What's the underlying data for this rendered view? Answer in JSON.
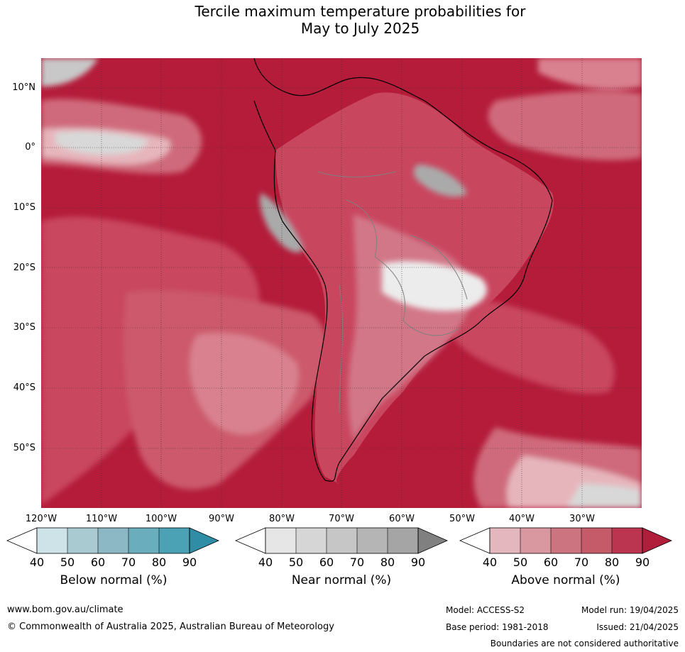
{
  "title": {
    "line1": "Tercile maximum temperature probabilities for",
    "line2": "May to July 2025"
  },
  "map": {
    "latitude_labels": [
      "10°N",
      "0°",
      "10°S",
      "20°S",
      "30°S",
      "40°S",
      "50°S"
    ],
    "longitude_labels": [
      "120°W",
      "110°W",
      "100°W",
      "90°W",
      "80°W",
      "70°W",
      "60°W",
      "50°W",
      "40°W",
      "30°W"
    ],
    "colors": {
      "above_90": "#b41c3a",
      "ocean_base": "#bf3750",
      "land_border": "#808080",
      "coastline": "#000000"
    }
  },
  "colorbars": [
    {
      "title": "Below normal (%)",
      "ticks": [
        "40",
        "50",
        "60",
        "70",
        "80",
        "90"
      ],
      "colors": [
        "#ffffff",
        "#cde3e8",
        "#a9cad1",
        "#8bb8c4",
        "#6aaebd",
        "#4aa2b4",
        "#2f8ea6"
      ]
    },
    {
      "title": "Near normal (%)",
      "ticks": [
        "40",
        "50",
        "60",
        "70",
        "80",
        "90"
      ],
      "colors": [
        "#ffffff",
        "#e6e6e6",
        "#d6d6d6",
        "#c6c6c6",
        "#b5b5b5",
        "#a5a5a5",
        "#808080"
      ]
    },
    {
      "title": "Above normal (%)",
      "ticks": [
        "40",
        "50",
        "60",
        "70",
        "80",
        "90"
      ],
      "colors": [
        "#ffffff",
        "#e3b7bd",
        "#d9979f",
        "#cc7581",
        "#c55a69",
        "#bb3550",
        "#b01e3c"
      ]
    }
  ],
  "footer": {
    "url": "www.bom.gov.au/climate",
    "copyright": "© Commonwealth of Australia 2025, Australian Bureau of Meteorology",
    "model": "Model: ACCESS-S2",
    "model_run": "Model run: 19/04/2025",
    "base_period": "Base period: 1981-2018",
    "issued": "Issued: 21/04/2025",
    "disclaimer": "Boundaries are not considered authoritative"
  }
}
